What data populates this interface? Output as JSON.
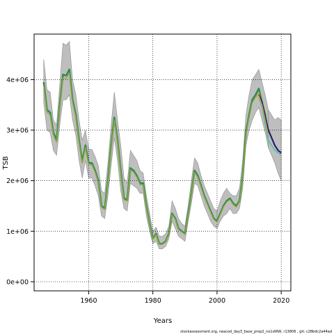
{
  "chart_data": {
    "type": "area",
    "title": "",
    "xlabel": "Years",
    "ylabel": "TSB",
    "xlim": [
      1943,
      2023
    ],
    "ylim": [
      -180000,
      4900000
    ],
    "x_ticks": [
      1960,
      1980,
      2000,
      2020
    ],
    "x_tick_labels": [
      "1960",
      "1980",
      "2000",
      "2020"
    ],
    "y_ticks": [
      0,
      1000000,
      2000000,
      3000000,
      4000000
    ],
    "y_tick_labels": [
      "0e+00",
      "1e+06",
      "2e+06",
      "3e+06",
      "4e+06"
    ],
    "grid": true,
    "legend": "none",
    "colors": {
      "band": "#bebebe",
      "band_edge": "#8c8c8c",
      "main_line": "#2e8b57",
      "secondary_line": "#9aa83a",
      "retro_dark": "#2b1d6b",
      "retro_teal": "#40c0b0",
      "retro_orange": "#e0a030"
    },
    "x": [
      1946,
      1947,
      1948,
      1949,
      1950,
      1951,
      1952,
      1953,
      1954,
      1955,
      1956,
      1957,
      1958,
      1959,
      1960,
      1961,
      1962,
      1963,
      1964,
      1965,
      1966,
      1967,
      1968,
      1969,
      1970,
      1971,
      1972,
      1973,
      1974,
      1975,
      1976,
      1977,
      1978,
      1979,
      1980,
      1981,
      1982,
      1983,
      1984,
      1985,
      1986,
      1987,
      1988,
      1989,
      1990,
      1991,
      1992,
      1993,
      1994,
      1995,
      1996,
      1997,
      1998,
      1999,
      2000,
      2001,
      2002,
      2003,
      2004,
      2005,
      2006,
      2007,
      2008,
      2009,
      2010,
      2011,
      2012,
      2013,
      2014,
      2015,
      2016
    ],
    "series": [
      {
        "values": [
          3950000,
          3400000,
          3350000,
          2950000,
          2800000,
          3500000,
          4100000,
          4080000,
          4200000,
          3600000,
          3300000,
          2800000,
          2380000,
          2700000,
          2350000,
          2350000,
          2200000,
          2000000,
          1500000,
          1450000,
          2000000,
          2700000,
          3250000,
          2800000,
          2200000,
          1650000,
          1620000,
          2250000,
          2200000,
          2100000,
          1950000,
          1950000,
          1500000,
          1150000,
          850000,
          950000,
          750000,
          750000,
          800000,
          950000,
          1350000,
          1250000,
          1050000,
          1000000,
          950000,
          1350000,
          1750000,
          2200000,
          2100000,
          1900000,
          1700000,
          1550000,
          1400000,
          1250000,
          1200000,
          1350000,
          1500000,
          1600000,
          1650000,
          1550000,
          1500000,
          1600000,
          2100000,
          2950000,
          3300000,
          3600000,
          3700000,
          3820000,
          3550000,
          3300000,
          2950000
        ]
      }
    ],
    "band": {
      "upper": [
        4400000,
        3800000,
        3750000,
        3200000,
        3100000,
        3900000,
        4720000,
        4680000,
        4750000,
        4000000,
        3700000,
        3200000,
        2800000,
        3000000,
        2620000,
        2620000,
        2480000,
        2300000,
        1800000,
        1750000,
        2350000,
        3100000,
        3750000,
        3200000,
        2700000,
        2050000,
        1950000,
        2600000,
        2500000,
        2400000,
        2200000,
        2150000,
        1700000,
        1350000,
        1000000,
        1080000,
        900000,
        900000,
        950000,
        1100000,
        1600000,
        1450000,
        1250000,
        1150000,
        1100000,
        1500000,
        2000000,
        2450000,
        2350000,
        2100000,
        1900000,
        1750000,
        1600000,
        1450000,
        1400000,
        1600000,
        1750000,
        1850000,
        1750000,
        1700000,
        1700000,
        1850000,
        2400000,
        3300000,
        3700000,
        4000000,
        4100000,
        4200000,
        3950000,
        3700000,
        3400000
      ],
      "lower": [
        3550000,
        3000000,
        2950000,
        2600000,
        2500000,
        3100000,
        3600000,
        3600000,
        3700000,
        3200000,
        2900000,
        2400000,
        2050000,
        2400000,
        2050000,
        2050000,
        1900000,
        1700000,
        1300000,
        1250000,
        1700000,
        2300000,
        2850000,
        2400000,
        1800000,
        1450000,
        1400000,
        1950000,
        1900000,
        1850000,
        1750000,
        1750000,
        1300000,
        1000000,
        750000,
        800000,
        650000,
        650000,
        700000,
        850000,
        1200000,
        1050000,
        900000,
        850000,
        800000,
        1200000,
        1550000,
        1950000,
        1900000,
        1700000,
        1500000,
        1350000,
        1200000,
        1100000,
        1050000,
        1200000,
        1300000,
        1350000,
        1450000,
        1350000,
        1350000,
        1450000,
        1850000,
        2700000,
        3000000,
        3200000,
        3350000,
        3450000,
        3200000,
        2950000,
        2650000
      ]
    },
    "retro_tail": [
      {
        "x": [
          2013,
          2014,
          2015,
          2016,
          2017,
          2018,
          2019,
          2020
        ],
        "values": [
          3700000,
          3550000,
          3250000,
          3000000,
          2850000,
          2700000,
          2600000,
          2550000
        ],
        "color": "#2b1d6b"
      },
      {
        "x": [
          2013,
          2014,
          2015,
          2016,
          2017,
          2018,
          2019,
          2020
        ],
        "values": [
          3650000,
          3450000,
          3100000,
          2800000,
          2700000,
          2600000,
          2550000,
          2500000
        ],
        "color": "#40c0b0"
      },
      {
        "x": [
          2012,
          2013,
          2014,
          2015,
          2016
        ],
        "values": [
          3650000,
          3680000,
          3500000,
          3200000,
          2900000
        ],
        "color": "#e0a030"
      }
    ],
    "tail_band": {
      "x": [
        2016,
        2017,
        2018,
        2019,
        2020
      ],
      "upper": [
        3400000,
        3300000,
        3200000,
        3250000,
        3200000
      ],
      "lower": [
        2650000,
        2500000,
        2350000,
        2150000,
        2000000
      ]
    }
  },
  "footnote": "stockassessment.org, neacod_day3_base_prop2_no1stRW, r13806 , git: c28bdc2a44ad"
}
